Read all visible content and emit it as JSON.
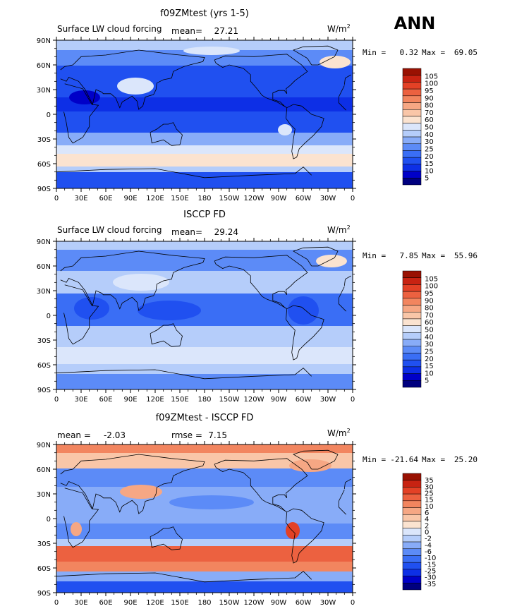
{
  "season": "ANN",
  "colors": {
    "main": [
      "#00007f",
      "#0000c8",
      "#0d2fe6",
      "#2050f0",
      "#3a6ef5",
      "#5c8bf7",
      "#88acf8",
      "#b5cdfa",
      "#dbe6fb",
      "#fbe3d0",
      "#f9c6a8",
      "#f6a784",
      "#f2855f",
      "#ec6140",
      "#e34126",
      "#c82312",
      "#991102"
    ],
    "diff": [
      "#00007f",
      "#0000c8",
      "#0d2fe6",
      "#2050f0",
      "#3a6ef5",
      "#5c8bf7",
      "#88acf8",
      "#b5cdfa",
      "#dbe6fb",
      "#fbe3d0",
      "#f9c6a8",
      "#f6a784",
      "#f2855f",
      "#ec6140",
      "#e34126",
      "#c82312",
      "#991102"
    ]
  },
  "chart_data": [
    {
      "type": "heatmap",
      "title": "f09ZMtest (yrs 1-5)",
      "left_label": "Surface LW cloud forcing",
      "mean_label": "mean=",
      "mean_value": "27.21",
      "units": "W/m",
      "units_exp": "2",
      "min_label": "Min =",
      "min_value": "0.32",
      "max_label": "Max =",
      "max_value": "69.05",
      "xticks": [
        "0",
        "30E",
        "60E",
        "90E",
        "120E",
        "150E",
        "180",
        "150W",
        "120W",
        "90W",
        "60W",
        "30W",
        "0"
      ],
      "yticks": [
        "90N",
        "60N",
        "30N",
        "0",
        "30S",
        "60S",
        "90S"
      ],
      "colorbar_levels": [
        "105",
        "100",
        "95",
        "90",
        "80",
        "70",
        "60",
        "50",
        "40",
        "30",
        "25",
        "20",
        "15",
        "10",
        "5"
      ],
      "colorbar_ref": "main"
    },
    {
      "type": "heatmap",
      "title": "ISCCP FD",
      "left_label": "Surface LW cloud forcing",
      "mean_label": "mean=",
      "mean_value": "29.24",
      "units": "W/m",
      "units_exp": "2",
      "min_label": "Min =",
      "min_value": "7.85",
      "max_label": "Max =",
      "max_value": "55.96",
      "xticks": [
        "0",
        "30E",
        "60E",
        "90E",
        "120E",
        "150E",
        "180",
        "150W",
        "120W",
        "90W",
        "60W",
        "30W",
        "0"
      ],
      "yticks": [
        "90N",
        "60N",
        "30N",
        "0",
        "30S",
        "60S",
        "90S"
      ],
      "colorbar_levels": [
        "105",
        "100",
        "95",
        "90",
        "80",
        "70",
        "60",
        "50",
        "40",
        "30",
        "25",
        "20",
        "15",
        "10",
        "5"
      ],
      "colorbar_ref": "main"
    },
    {
      "type": "heatmap",
      "title": "f09ZMtest - ISCCP FD",
      "left_label": "mean =",
      "left_value": "-2.03",
      "mid_label": "rmse =",
      "mid_value": "7.15",
      "units": "W/m",
      "units_exp": "2",
      "min_label": "Min =",
      "min_value": "-21.64",
      "max_label": "Max =",
      "max_value": "25.20",
      "xticks": [
        "0",
        "30E",
        "60E",
        "90E",
        "120E",
        "150E",
        "180",
        "150W",
        "120W",
        "90W",
        "60W",
        "30W",
        "0"
      ],
      "yticks": [
        "90N",
        "60N",
        "30N",
        "0",
        "30S",
        "60S",
        "90S"
      ],
      "colorbar_levels": [
        "35",
        "30",
        "25",
        "15",
        "10",
        "6",
        "4",
        "2",
        "0",
        "-2",
        "-4",
        "-6",
        "-10",
        "-15",
        "-25",
        "-30",
        "-35"
      ],
      "colorbar_ref": "diff"
    }
  ]
}
